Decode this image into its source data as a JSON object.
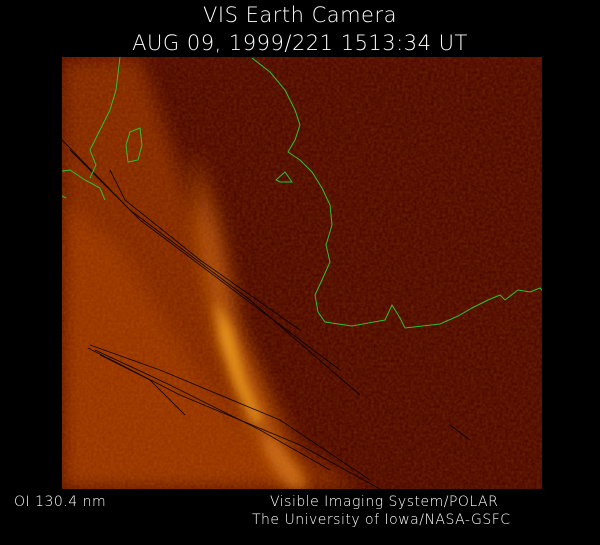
{
  "header": {
    "title": "VIS Earth Camera",
    "timestamp": "AUG 09, 1999/221 1513:34 UT"
  },
  "footer": {
    "filter": "OI  130.4 nm",
    "instrument": "Visible Imaging System/POLAR",
    "institution": "The University of Iowa/NASA-GSFC"
  },
  "colors": {
    "background": "#000000",
    "image_base": "#4a0500",
    "aurora_glow": "#f0a020",
    "coastline": "#2fbf2f",
    "text": "#ffffff"
  }
}
